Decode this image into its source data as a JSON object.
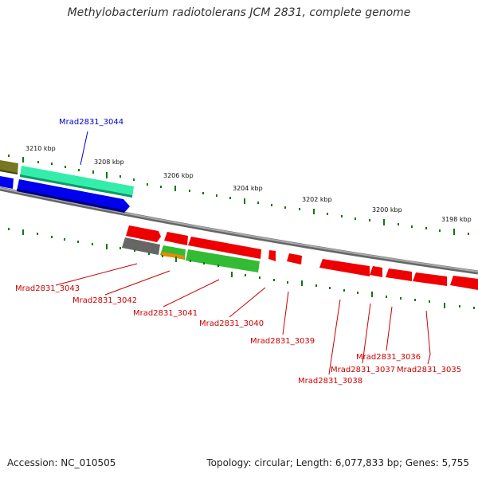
{
  "title": "Methylobacterium radiotolerans JCM 2831, complete genome",
  "footer": {
    "accession": "Accession: NC_010505",
    "topology": "Topology: circular; Length: 6,077,833 bp; Genes: 5,755"
  },
  "scale_labels": [
    "3210 kbp",
    "3208 kbp",
    "3206 kbp",
    "3204 kbp",
    "3202 kbp",
    "3200 kbp",
    "3198 kbp"
  ],
  "gene_labels": {
    "mrad3044": "Mrad2831_3044",
    "mrad3043": "Mrad2831_3043",
    "mrad3042": "Mrad2831_3042",
    "mrad3041": "Mrad2831_3041",
    "mrad3040": "Mrad2831_3040",
    "mrad3039": "Mrad2831_3039",
    "mrad3038": "Mrad2831_3038",
    "mrad3037": "Mrad2831_3037",
    "mrad3036": "Mrad2831_3036",
    "mrad3035": "Mrad2831_3035"
  },
  "colors": {
    "forward_label": "#0000cc",
    "reverse_label": "#cc0000",
    "reverse_cds": "#ee0000",
    "forward_cds": "#0000ee",
    "highlight_cds": "#33eeaa",
    "green_cds": "#33bb33",
    "orange_cds": "#ee8800",
    "gray_cds": "#666666",
    "olive_cds": "#777722",
    "tick": "#117711",
    "backbone": "#888888"
  }
}
